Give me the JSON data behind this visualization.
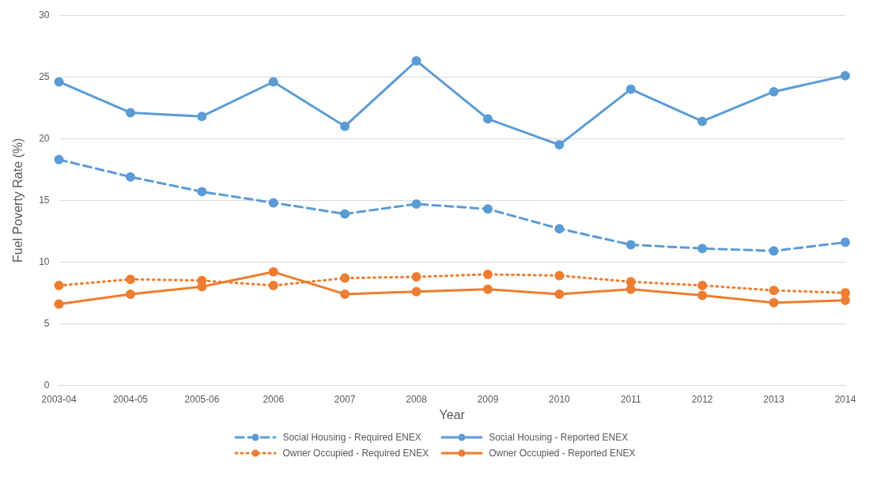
{
  "chart_data": {
    "type": "line",
    "xlabel": "Year",
    "ylabel": "Fuel Poverty Rate (%)",
    "categories": [
      "2003-04",
      "2004-05",
      "2005-06",
      "2006",
      "2007",
      "2008",
      "2009",
      "2010",
      "2011",
      "2012",
      "2013",
      "2014"
    ],
    "ylim": [
      0,
      30
    ],
    "yticks": [
      0,
      5,
      10,
      15,
      20,
      25,
      30
    ],
    "grid": "y",
    "legend": "bottom",
    "marker": "circle",
    "series": [
      {
        "name": "Social Housing - Required ENEX",
        "color": "#5b9bd5",
        "line_style": "dashed",
        "values": [
          18.3,
          16.9,
          15.7,
          14.8,
          13.9,
          14.7,
          14.3,
          12.7,
          11.4,
          11.1,
          10.9,
          11.6
        ]
      },
      {
        "name": "Social Housing - Reported ENEX",
        "color": "#5b9bd5",
        "line_style": "solid",
        "values": [
          24.6,
          22.1,
          21.8,
          24.6,
          21.0,
          26.3,
          21.6,
          19.5,
          24.0,
          21.4,
          23.8,
          25.1
        ]
      },
      {
        "name": "Owner Occupied - Required ENEX",
        "color": "#ed7d31",
        "line_style": "dotted",
        "values": [
          8.1,
          8.6,
          8.5,
          8.1,
          8.7,
          8.8,
          9.0,
          8.9,
          8.4,
          8.1,
          7.7,
          7.5
        ]
      },
      {
        "name": "Owner Occupied - Reported ENEX",
        "color": "#ed7d31",
        "line_style": "solid",
        "values": [
          6.6,
          7.4,
          8.0,
          9.2,
          7.4,
          7.6,
          7.8,
          7.4,
          7.8,
          7.3,
          6.7,
          6.9
        ]
      }
    ]
  }
}
